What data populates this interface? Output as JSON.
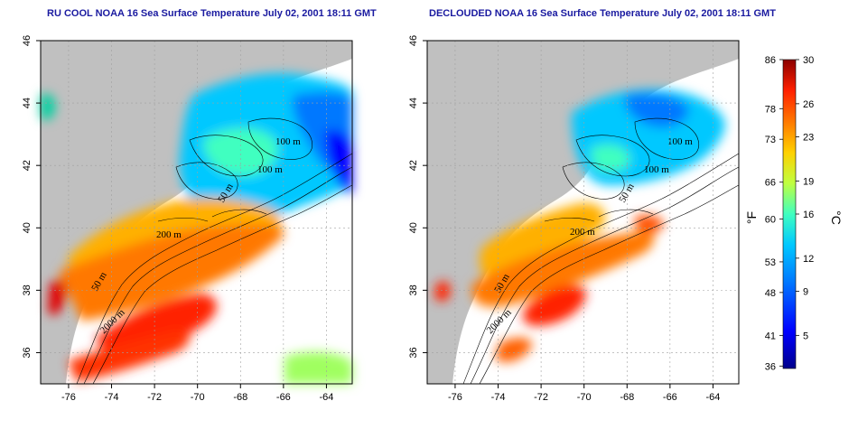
{
  "panels": [
    {
      "title": "RU COOL NOAA 16 Sea Surface Temperature July 02, 2001 18:11 GMT",
      "contour_labels": [
        "100 m",
        "100 m",
        "50 m",
        "200 m",
        "50 m",
        "2000 m"
      ]
    },
    {
      "title": "DECLOUDED NOAA 16 Sea Surface Temperature July 02, 2001 18:11 GMT",
      "contour_labels": [
        "100 m",
        "100 m",
        "50 m",
        "200 m",
        "50 m",
        "2000 m"
      ]
    }
  ],
  "axes": {
    "x_ticks": [
      "-76",
      "-74",
      "-72",
      "-70",
      "-68",
      "-66",
      "-64"
    ],
    "y_ticks": [
      "36",
      "38",
      "40",
      "42",
      "44",
      "46"
    ],
    "x_range": [
      -77.3,
      -62.8
    ],
    "y_range": [
      35,
      46
    ]
  },
  "colorbar": {
    "fahrenheit_label": "°F",
    "celsius_label": "°C",
    "fahrenheit_ticks": [
      "86",
      "78",
      "73",
      "66",
      "60",
      "53",
      "48",
      "41",
      "36"
    ],
    "celsius_ticks": [
      "30",
      "26",
      "23",
      "19",
      "16",
      "12",
      "9",
      "5"
    ],
    "range_celsius": [
      2,
      30
    ],
    "colors": [
      "#00008b",
      "#0000ff",
      "#0078ff",
      "#00c8ff",
      "#40ffc0",
      "#c0ff40",
      "#ffd000",
      "#ff7800",
      "#ff2000",
      "#8b0000"
    ]
  },
  "colors": {
    "land": "#c0c0c0",
    "title": "#1a1aa0",
    "contour": "#000000"
  }
}
